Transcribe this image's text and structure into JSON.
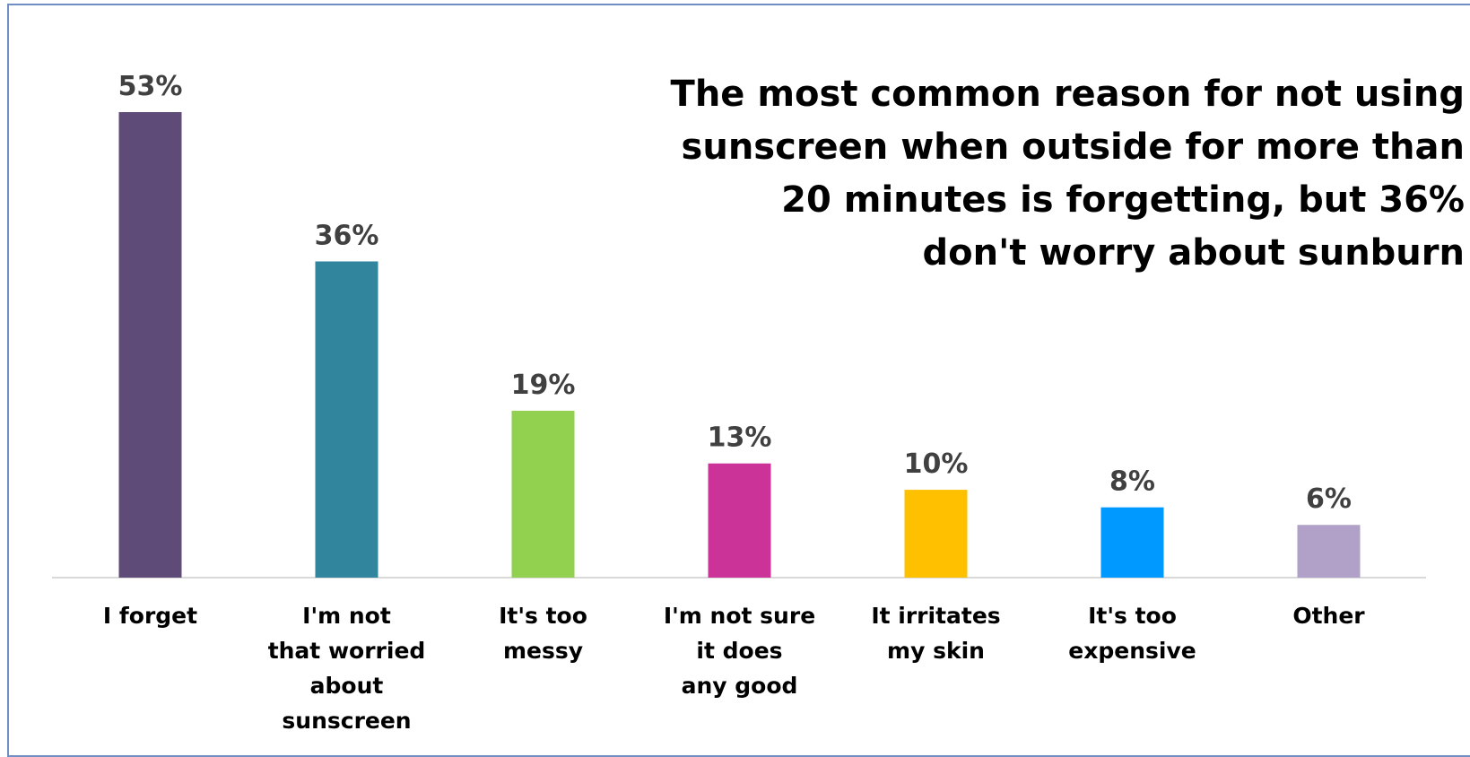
{
  "chart_data": {
    "type": "bar",
    "title": "The most common reason for not using\nsunscreen when outside for more than\n20 minutes is forgetting, but 36%\ndon't worry about sunburn",
    "categories": [
      "I forget",
      "I'm not that worried about sunscreen",
      "It's too messy",
      "I'm not sure it does any good",
      "It irritates my skin",
      "It's too expensive",
      "Other"
    ],
    "category_lines": [
      [
        "I forget"
      ],
      [
        "I'm not",
        "that worried",
        "about",
        "sunscreen"
      ],
      [
        "It's too",
        "messy"
      ],
      [
        "I'm not sure",
        "it does",
        "any good"
      ],
      [
        "It irritates",
        "my skin"
      ],
      [
        "It's too",
        "expensive"
      ],
      [
        "Other"
      ]
    ],
    "values": [
      53,
      36,
      19,
      13,
      10,
      8,
      6
    ],
    "data_labels": [
      "53%",
      "36%",
      "19%",
      "13%",
      "10%",
      "8%",
      "6%"
    ],
    "colors": [
      "#5f4b78",
      "#31859c",
      "#92d050",
      "#cc3399",
      "#ffc000",
      "#0099ff",
      "#b1a0c7"
    ],
    "xlabel": "",
    "ylabel": "",
    "ylim": [
      0,
      53
    ],
    "grid": false,
    "legend": "none",
    "axis_color": "#d9d9d9"
  }
}
